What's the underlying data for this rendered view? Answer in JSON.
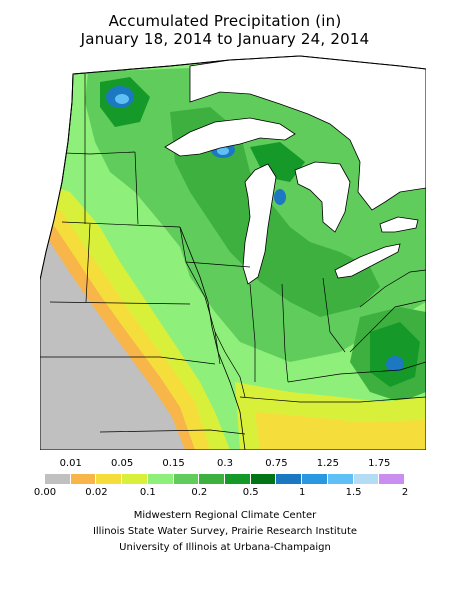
{
  "title": "Accumulated Precipitation (in)",
  "subtitle": "January 18, 2014 to January 24, 2014",
  "legend": {
    "top_labels": [
      "0.01",
      "0.05",
      "0.15",
      "0.3",
      "0.75",
      "1.25",
      "1.75"
    ],
    "bottom_labels": [
      "0.00",
      "0.02",
      "0.1",
      "0.2",
      "0.5",
      "1",
      "1.5",
      "2"
    ],
    "colors": [
      "#c0c0c0",
      "#f7b54a",
      "#f5de3c",
      "#d9f03a",
      "#8ef07a",
      "#60cc5c",
      "#3eb040",
      "#159a2a",
      "#047514",
      "#1c78c0",
      "#2a98e0",
      "#5ec0f5",
      "#b4dcf5",
      "#c98ef0"
    ]
  },
  "credits": [
    "Midwestern Regional Climate Center",
    "Illinois State Water Survey, Prairie Research Institute",
    "University of Illinois at Urbana-Champaign"
  ]
}
